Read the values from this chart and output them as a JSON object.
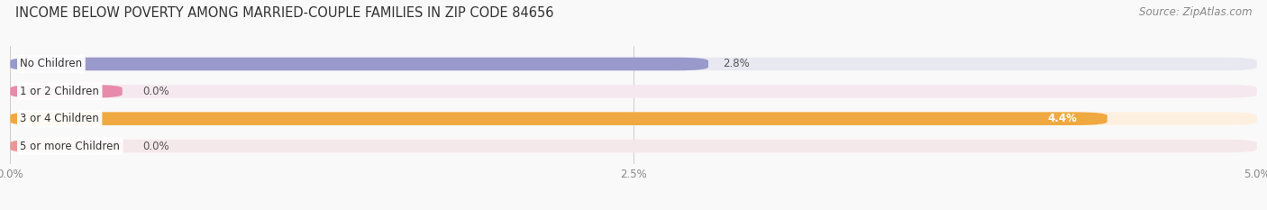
{
  "title": "INCOME BELOW POVERTY AMONG MARRIED-COUPLE FAMILIES IN ZIP CODE 84656",
  "source": "Source: ZipAtlas.com",
  "categories": [
    "No Children",
    "1 or 2 Children",
    "3 or 4 Children",
    "5 or more Children"
  ],
  "values": [
    2.8,
    0.0,
    4.4,
    0.0
  ],
  "bar_colors": [
    "#9999cc",
    "#e88aaa",
    "#f0a840",
    "#e89898"
  ],
  "bar_bg_colors": [
    "#e8e8f2",
    "#f5e8ee",
    "#fef0e0",
    "#f5e8ea"
  ],
  "label_dot_colors": [
    "#9999cc",
    "#e88aaa",
    "#f0a840",
    "#e89898"
  ],
  "xlim": [
    0,
    5.0
  ],
  "xticks": [
    0.0,
    2.5,
    5.0
  ],
  "xticklabels": [
    "0.0%",
    "2.5%",
    "5.0%"
  ],
  "bar_height": 0.48,
  "fig_width": 14.06,
  "fig_height": 2.33,
  "title_fontsize": 10.5,
  "label_fontsize": 8.5,
  "value_fontsize": 8.5,
  "source_fontsize": 8.5,
  "background_color": "#f9f9f9"
}
